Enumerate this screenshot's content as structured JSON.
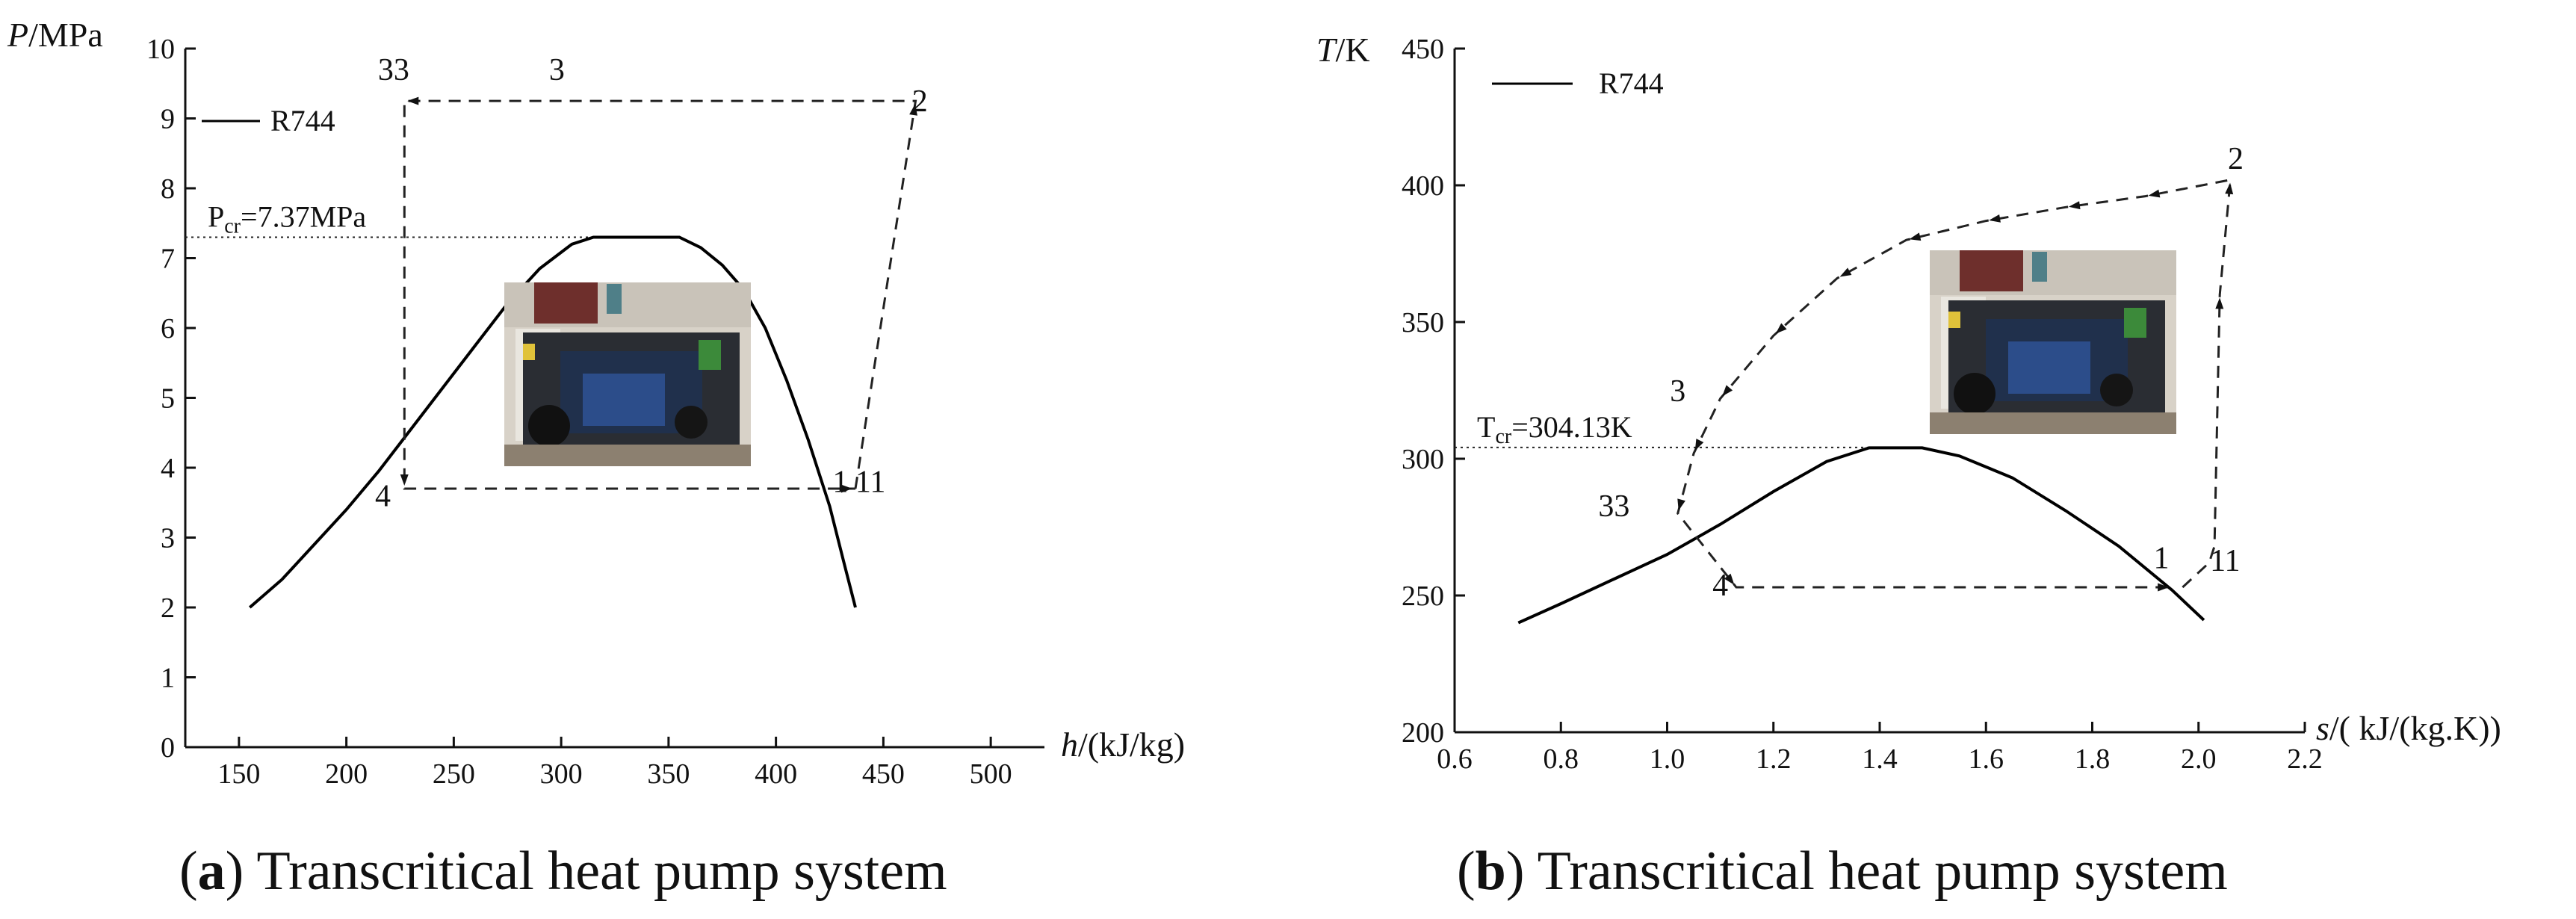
{
  "chart_data": [
    {
      "type": "line",
      "panel": "a",
      "caption_letter": "a",
      "caption_rest": ") Transcritical heat pump system",
      "xlabel_var": "h",
      "xlabel_unit": "/(kJ/kg)",
      "ylabel_var": "P",
      "ylabel_unit": "/MPa",
      "xlim": [
        125,
        525
      ],
      "ylim": [
        0,
        10
      ],
      "x_ticks": [
        150,
        200,
        250,
        300,
        350,
        400,
        450,
        500
      ],
      "y_ticks": [
        0,
        1,
        2,
        3,
        4,
        5,
        6,
        7,
        8,
        9,
        10
      ],
      "legend": "R744",
      "critical_label": "P",
      "critical_sub": "cr",
      "critical_value_text": "=7.37MPa",
      "critical_y": 7.3,
      "series": [
        {
          "name": "R744",
          "style": "solid",
          "x": [
            155,
            170,
            185,
            200,
            215,
            230,
            245,
            260,
            275,
            290,
            305,
            315,
            335,
            355,
            365,
            375,
            385,
            395,
            405,
            415,
            425,
            432,
            437
          ],
          "y": [
            2.0,
            2.4,
            2.9,
            3.4,
            3.95,
            4.55,
            5.15,
            5.75,
            6.35,
            6.85,
            7.2,
            7.3,
            7.3,
            7.3,
            7.15,
            6.9,
            6.55,
            6.0,
            5.25,
            4.4,
            3.45,
            2.6,
            2.0
          ]
        },
        {
          "name": "cycle",
          "style": "dashed",
          "x": [
            437,
            465,
            227,
            227,
            437
          ],
          "y": [
            3.7,
            9.25,
            9.25,
            3.7,
            3.7
          ]
        }
      ],
      "point_labels": [
        {
          "text": "33",
          "x": 222,
          "y": 9.55
        },
        {
          "text": "3",
          "x": 298,
          "y": 9.55
        },
        {
          "text": "2",
          "x": 467,
          "y": 9.1
        },
        {
          "text": "4",
          "x": 217,
          "y": 3.45
        },
        {
          "text": "1",
          "x": 430,
          "y": 3.65
        },
        {
          "text": "11",
          "x": 444,
          "y": 3.65
        }
      ]
    },
    {
      "type": "line",
      "panel": "b",
      "caption_letter": "b",
      "caption_rest": ") Transcritical heat pump system",
      "xlabel_var": "s",
      "xlabel_unit": "/( kJ/(kg.K))",
      "ylabel_var": "T",
      "ylabel_unit": "/K",
      "xlim": [
        0.6,
        2.2
      ],
      "ylim": [
        200,
        450
      ],
      "x_ticks": [
        0.6,
        0.8,
        1.0,
        1.2,
        1.4,
        1.6,
        1.8,
        2.0,
        2.2
      ],
      "y_ticks": [
        200,
        250,
        300,
        350,
        400,
        450
      ],
      "legend": "R744",
      "critical_label": "T",
      "critical_sub": "cr",
      "critical_value_text": "=304.13K",
      "critical_y": 304.13,
      "series": [
        {
          "name": "R744",
          "style": "solid",
          "x": [
            0.72,
            0.8,
            0.9,
            1.0,
            1.1,
            1.2,
            1.3,
            1.38,
            1.48,
            1.55,
            1.65,
            1.75,
            1.85,
            1.95,
            2.01
          ],
          "y": [
            240,
            247,
            256,
            265,
            276,
            288,
            299,
            304,
            304,
            301,
            293,
            281,
            268,
            252,
            241
          ]
        },
        {
          "name": "cycle",
          "style": "dashed",
          "x": [
            1.97,
            2.02,
            2.03,
            2.04,
            2.06,
            1.9,
            1.75,
            1.6,
            1.45,
            1.32,
            1.2,
            1.1,
            1.05,
            1.02,
            1.13,
            1.95
          ],
          "y": [
            253,
            262,
            268,
            360,
            402,
            396,
            392,
            387,
            380,
            366,
            345,
            322,
            302,
            280,
            253,
            253
          ]
        }
      ],
      "point_labels": [
        {
          "text": "2",
          "x": 2.07,
          "y": 406
        },
        {
          "text": "3",
          "x": 1.02,
          "y": 321
        },
        {
          "text": "33",
          "x": 0.9,
          "y": 279
        },
        {
          "text": "4",
          "x": 1.1,
          "y": 250
        },
        {
          "text": "1",
          "x": 1.93,
          "y": 260
        },
        {
          "text": "11",
          "x": 2.05,
          "y": 259
        }
      ]
    }
  ]
}
